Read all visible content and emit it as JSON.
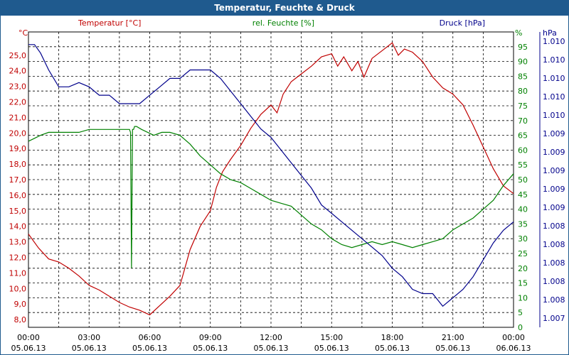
{
  "title": "Temperatur, Feuchte & Druck",
  "chart_data": {
    "type": "line",
    "title": "Temperatur, Feuchte & Druck",
    "x_ticks": [
      {
        "time": "00:00",
        "date": "05.06.13"
      },
      {
        "time": "03:00",
        "date": "05.06.13"
      },
      {
        "time": "06:00",
        "date": "05.06.13"
      },
      {
        "time": "09:00",
        "date": "05.06.13"
      },
      {
        "time": "12:00",
        "date": "05.06.13"
      },
      {
        "time": "15:00",
        "date": "05.06.13"
      },
      {
        "time": "18:00",
        "date": "05.06.13"
      },
      {
        "time": "21:00",
        "date": "05.06.13"
      },
      {
        "time": "00:00",
        "date": "06.06.13"
      }
    ],
    "x_range_hours": [
      0,
      24
    ],
    "axes": {
      "temp": {
        "unit": "°C",
        "label": "Temperatur [°C]",
        "color": "#c00000",
        "range": [
          7.5,
          26.5
        ],
        "ticks": [
          "8,0",
          "9,0",
          "10,0",
          "11,0",
          "12,0",
          "13,0",
          "14,0",
          "15,0",
          "16,0",
          "17,0",
          "18,0",
          "19,0",
          "20,0",
          "21,0",
          "22,0",
          "23,0",
          "24,0",
          "25,0"
        ]
      },
      "hum": {
        "unit": "%",
        "label": "rel. Feuchte [%]",
        "color": "#008000",
        "range": [
          0,
          100
        ],
        "ticks": [
          "0",
          "5",
          "10",
          "15",
          "20",
          "25",
          "30",
          "35",
          "40",
          "45",
          "50",
          "55",
          "60",
          "65",
          "70",
          "75",
          "80",
          "85",
          "90",
          "95"
        ]
      },
      "press": {
        "unit": "hPa",
        "label": "Druck [hPa]",
        "color": "#00008b",
        "range": [
          1007.25,
          1010.75
        ],
        "ticks": [
          "1.007",
          "1.008",
          "1.008",
          "1.008",
          "1.008",
          "1.008",
          "1.009",
          "1.009",
          "1.009",
          "1.009",
          "1.009",
          "1.010",
          "1.010",
          "1.010",
          "1.010",
          "1.010"
        ]
      }
    },
    "series": [
      {
        "name": "Temperatur [°C]",
        "axis": "temp",
        "color": "#c00000",
        "x": [
          0,
          0.5,
          1,
          1.5,
          2,
          2.5,
          3,
          3.5,
          4,
          4.5,
          5,
          5.5,
          6,
          6.5,
          7,
          7.5,
          8,
          8.5,
          9,
          9.3,
          9.6,
          10,
          10.5,
          11,
          11.5,
          12,
          12.3,
          12.6,
          13,
          13.5,
          14,
          14.5,
          15,
          15.3,
          15.6,
          16,
          16.3,
          16.6,
          17,
          17.5,
          18,
          18.3,
          18.6,
          19,
          19.5,
          20,
          20.5,
          21,
          21.5,
          22,
          22.5,
          23,
          23.5,
          24
        ],
        "values": [
          13.5,
          12.6,
          11.9,
          11.7,
          11.3,
          10.8,
          10.2,
          9.9,
          9.5,
          9.1,
          8.8,
          8.6,
          8.3,
          8.9,
          9.5,
          10.2,
          12.5,
          14.0,
          15.0,
          16.5,
          17.5,
          18.3,
          19.2,
          20.3,
          21.2,
          21.8,
          21.3,
          22.5,
          23.3,
          23.8,
          24.3,
          24.9,
          25.1,
          24.3,
          24.9,
          24.0,
          24.6,
          23.6,
          24.8,
          25.3,
          25.8,
          25.0,
          25.4,
          25.2,
          24.6,
          23.6,
          22.9,
          22.5,
          21.8,
          20.5,
          19.1,
          17.7,
          16.6,
          16.1
        ]
      },
      {
        "name": "rel. Feuchte [%]",
        "axis": "hum",
        "color": "#008000",
        "x": [
          0,
          0.3,
          0.6,
          1,
          1.5,
          2,
          2.5,
          3,
          3.5,
          4,
          4.5,
          4.9,
          5.0,
          5.05,
          5.1,
          5.15,
          5.2,
          5.25,
          5.35,
          5.6,
          5.9,
          6.2,
          6.6,
          7,
          7.5,
          8,
          8.5,
          9,
          9.5,
          10,
          10.5,
          11,
          11.5,
          12,
          12.5,
          13,
          13.5,
          14,
          14.5,
          15,
          15.5,
          16,
          16.5,
          17,
          17.5,
          18,
          18.5,
          19,
          19.5,
          20,
          20.5,
          21,
          21.5,
          22,
          22.5,
          23,
          23.5,
          24
        ],
        "values": [
          63,
          64,
          65,
          66,
          66,
          66,
          66,
          67,
          67,
          67,
          67,
          67,
          67,
          66,
          20,
          67,
          67,
          68,
          68,
          67,
          66,
          65,
          66,
          66,
          65,
          62,
          58,
          55,
          52,
          50,
          49,
          47,
          45,
          43,
          42,
          41,
          38,
          35,
          33,
          30,
          28,
          27,
          28,
          29,
          28,
          29,
          28,
          27,
          28,
          29,
          30,
          33,
          35,
          37,
          40,
          43,
          48,
          52
        ]
      },
      {
        "name": "Druck [hPa]",
        "axis": "press",
        "color": "#00008b",
        "x": [
          0,
          0.3,
          0.6,
          1,
          1.5,
          2,
          2.5,
          3,
          3.5,
          4,
          4.5,
          5,
          5.5,
          6,
          6.5,
          7,
          7.5,
          8,
          8.5,
          9,
          9.5,
          10,
          10.5,
          11,
          11.5,
          12,
          12.5,
          13,
          13.5,
          14,
          14.5,
          15,
          15.5,
          16,
          16.5,
          17,
          17.5,
          18,
          18.5,
          19,
          19.5,
          20,
          20.5,
          21,
          21.5,
          22,
          22.5,
          23,
          23.5,
          24
        ],
        "values": [
          1010.6,
          1010.6,
          1010.5,
          1010.3,
          1010.1,
          1010.1,
          1010.15,
          1010.1,
          1010.0,
          1010.0,
          1009.9,
          1009.9,
          1009.9,
          1010.0,
          1010.1,
          1010.2,
          1010.2,
          1010.3,
          1010.3,
          1010.3,
          1010.2,
          1010.05,
          1009.9,
          1009.75,
          1009.6,
          1009.5,
          1009.35,
          1009.2,
          1009.05,
          1008.9,
          1008.7,
          1008.6,
          1008.5,
          1008.4,
          1008.3,
          1008.2,
          1008.1,
          1007.95,
          1007.85,
          1007.7,
          1007.65,
          1007.65,
          1007.5,
          1007.6,
          1007.7,
          1007.85,
          1008.05,
          1008.25,
          1008.4,
          1008.5
        ]
      }
    ]
  }
}
